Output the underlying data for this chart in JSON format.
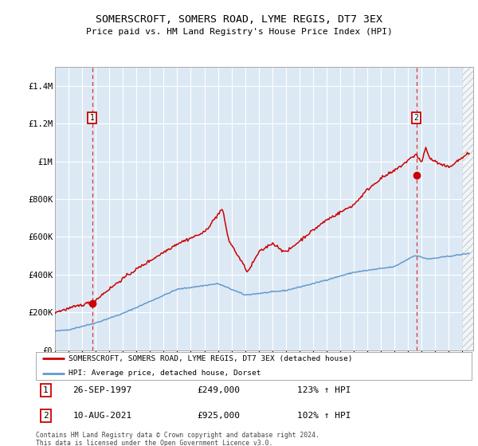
{
  "title": "SOMERSCROFT, SOMERS ROAD, LYME REGIS, DT7 3EX",
  "subtitle": "Price paid vs. HM Land Registry's House Price Index (HPI)",
  "red_label": "SOMERSCROFT, SOMERS ROAD, LYME REGIS, DT7 3EX (detached house)",
  "blue_label": "HPI: Average price, detached house, Dorset",
  "annotation1_date": "26-SEP-1997",
  "annotation1_price": "£249,000",
  "annotation1_hpi": "123% ↑ HPI",
  "annotation1_year": 1997.73,
  "annotation1_value": 249000,
  "annotation2_date": "10-AUG-2021",
  "annotation2_price": "£925,000",
  "annotation2_hpi": "102% ↑ HPI",
  "annotation2_year": 2021.61,
  "annotation2_value": 925000,
  "xlim": [
    1995.0,
    2025.8
  ],
  "ylim": [
    0,
    1500000
  ],
  "yticks": [
    0,
    200000,
    400000,
    600000,
    800000,
    1000000,
    1200000,
    1400000
  ],
  "ytick_labels": [
    "£0",
    "£200K",
    "£400K",
    "£600K",
    "£800K",
    "£1M",
    "£1.2M",
    "£1.4M"
  ],
  "xticks": [
    1995,
    1996,
    1997,
    1998,
    1999,
    2000,
    2001,
    2002,
    2003,
    2004,
    2005,
    2006,
    2007,
    2008,
    2009,
    2010,
    2011,
    2012,
    2013,
    2014,
    2015,
    2016,
    2017,
    2018,
    2019,
    2020,
    2021,
    2022,
    2023,
    2024,
    2025
  ],
  "background_color": "#dce9f5",
  "grid_color": "#ffffff",
  "red_color": "#cc0000",
  "blue_color": "#6699cc",
  "dashed_line_color": "#dd3333",
  "footer": "Contains HM Land Registry data © Crown copyright and database right 2024.\nThis data is licensed under the Open Government Licence v3.0."
}
